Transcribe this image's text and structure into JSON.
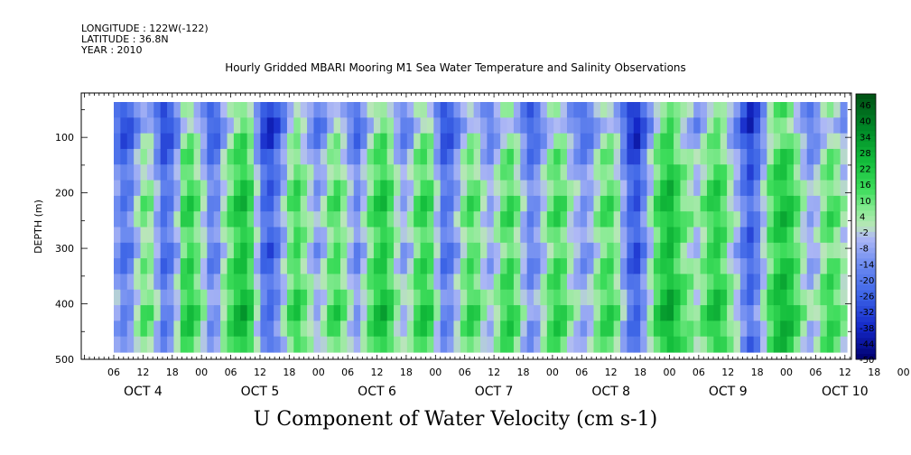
{
  "header": {
    "longitude": "LONGITUDE : 122W(-122)",
    "latitude": "LATITUDE : 36.8N",
    "year": "YEAR : 2010"
  },
  "chart_data": {
    "type": "heatmap",
    "title": "Hourly Gridded MBARI Mooring M1 Sea Water Temperature and Salinity Observations",
    "xlabel": "U Component of Water Velocity (cm s-1)",
    "ylabel": "DEPTH (m)",
    "y_ticks": [
      100,
      200,
      300,
      400,
      500
    ],
    "ylim": [
      500,
      20
    ],
    "x_hour_ticks": [
      "06",
      "12",
      "18",
      "00",
      "06",
      "12",
      "18",
      "00",
      "06",
      "12",
      "18",
      "00",
      "06",
      "12",
      "18",
      "00",
      "06",
      "12",
      "18",
      "00",
      "06",
      "12",
      "18",
      "00",
      "06",
      "12",
      "18",
      "00"
    ],
    "day_labels": [
      "OCT  4",
      "OCT  5",
      "OCT  6",
      "OCT  7",
      "OCT  8",
      "OCT  9",
      "OCT 10"
    ],
    "colorbar": {
      "labels": [
        "46",
        "40",
        "34",
        "28",
        "22",
        "16",
        "10",
        "4",
        "-2",
        "-8",
        "-14",
        "-20",
        "-26",
        "-32",
        "-38",
        "-44",
        "-50"
      ],
      "range": [
        -50,
        50
      ]
    },
    "column_pattern": [
      -14,
      -22,
      -18,
      -6,
      4,
      2,
      -10,
      -24,
      -20,
      -8,
      10,
      14,
      6,
      -4,
      -18,
      -16,
      -2,
      8,
      16,
      20,
      12,
      -6,
      -24,
      -28,
      -20,
      -8,
      6,
      12,
      4,
      -4,
      -12,
      -6,
      6,
      10,
      2,
      -8,
      -16,
      -6,
      6,
      14,
      18,
      10,
      -2,
      -10,
      -4,
      8,
      14,
      10,
      -6,
      -22,
      -20,
      -10,
      2,
      10,
      6,
      -4,
      -10,
      -2,
      8,
      12,
      4,
      -8,
      -18,
      -14,
      -4,
      6,
      12,
      8,
      -2,
      -8,
      -14,
      -10,
      0,
      8,
      10,
      2,
      -12,
      -26,
      -30,
      -18,
      -4,
      10,
      18,
      22,
      14,
      6,
      2,
      -4,
      4,
      12,
      16,
      10,
      0,
      -8,
      -20,
      -28,
      -20,
      -6,
      8,
      16,
      20,
      16,
      8,
      -2,
      -10,
      -6,
      4,
      10,
      6,
      -2
    ],
    "depth_pattern": [
      -8,
      -10,
      -6,
      -2,
      0,
      2,
      4,
      4,
      2,
      0,
      2,
      4,
      6,
      8,
      6,
      4
    ]
  }
}
